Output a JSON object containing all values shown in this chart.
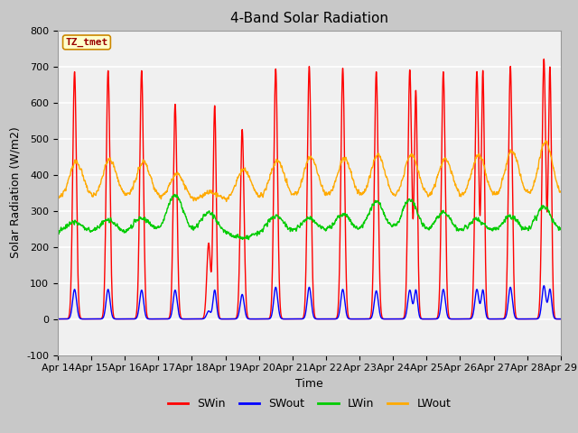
{
  "title": "4-Band Solar Radiation",
  "xlabel": "Time",
  "ylabel": "Solar Radiation (W/m2)",
  "ylim": [
    -100,
    800
  ],
  "n_days": 15,
  "xtick_labels": [
    "Apr 14",
    "Apr 15",
    "Apr 16",
    "Apr 17",
    "Apr 18",
    "Apr 19",
    "Apr 20",
    "Apr 21",
    "Apr 22",
    "Apr 23",
    "Apr 24",
    "Apr 25",
    "Apr 26",
    "Apr 27",
    "Apr 28",
    "Apr 29"
  ],
  "legend_label": "TZ_tmet",
  "series_labels": [
    "SWin",
    "SWout",
    "LWin",
    "LWout"
  ],
  "colors": [
    "#ff0000",
    "#0000ff",
    "#00cc00",
    "#ffaa00"
  ],
  "fig_bg_color": "#c8c8c8",
  "plot_bg_color": "#f0f0f0",
  "grid_color": "#ffffff",
  "title_fontsize": 11,
  "axis_label_fontsize": 9,
  "tick_fontsize": 8,
  "legend_fontsize": 9,
  "SWin_peaks": [
    685,
    688,
    688,
    595,
    210,
    525,
    693,
    700,
    695,
    685,
    690,
    685,
    685,
    700,
    720
  ],
  "SWin_peaks2": [
    0,
    0,
    0,
    0,
    590,
    0,
    0,
    0,
    0,
    0,
    630,
    0,
    685,
    0,
    695
  ],
  "SWout_peaks": [
    82,
    82,
    80,
    80,
    22,
    68,
    88,
    88,
    82,
    78,
    80,
    82,
    82,
    88,
    92
  ],
  "SWout_peaks2": [
    0,
    0,
    0,
    0,
    80,
    0,
    0,
    0,
    0,
    0,
    80,
    0,
    80,
    0,
    82
  ],
  "LWin_base": 238,
  "LWin_day_peaks": [
    270,
    275,
    280,
    345,
    295,
    225,
    285,
    280,
    290,
    325,
    330,
    295,
    275,
    285,
    310
  ],
  "LWout_base": 330,
  "LWout_day_peaks": [
    435,
    440,
    435,
    400,
    350,
    415,
    440,
    450,
    445,
    455,
    455,
    445,
    455,
    465,
    490
  ]
}
